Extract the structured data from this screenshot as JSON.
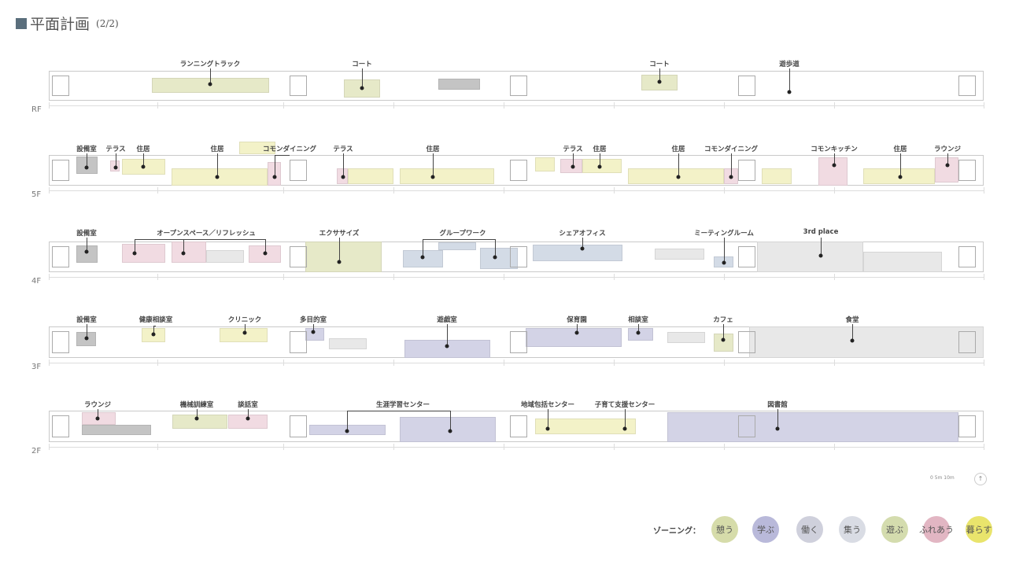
{
  "header": {
    "title": "平面計画",
    "page": "(2/2)"
  },
  "floors": [
    {
      "name": "RF",
      "labels": [
        "ランニングトラック",
        "コート",
        "コート",
        "遊歩道"
      ]
    },
    {
      "name": "5F",
      "labels": [
        "設備室",
        "テラス",
        "住居",
        "住居",
        "コモンダイニング",
        "テラス",
        "住居",
        "テラス",
        "住居",
        "住居",
        "コモンダイニング",
        "コモンキッチン",
        "住居",
        "ラウンジ"
      ]
    },
    {
      "name": "4F",
      "labels": [
        "設備室",
        "オープンスペース／リフレッシュ",
        "エクササイズ",
        "グループワーク",
        "シェアオフィス",
        "ミーティングルーム",
        "3rd place"
      ]
    },
    {
      "name": "3F",
      "labels": [
        "設備室",
        "健康相談室",
        "クリニック",
        "多目的室",
        "遊戯室",
        "保育園",
        "相談室",
        "カフェ",
        "食堂"
      ]
    },
    {
      "name": "2F",
      "labels": [
        "ラウンジ",
        "機械訓練室",
        "談話室",
        "生涯学習センター",
        "地域包括センター",
        "子育て支援センター",
        "図書館"
      ]
    }
  ],
  "scale_bar": "0 5m 10m",
  "north_arrow": "north-arrow-icon",
  "legend": {
    "title": "ゾーニング：",
    "items": [
      {
        "label": "憩う",
        "color": "#d6dcaa"
      },
      {
        "label": "学ぶ",
        "color": "#b9b9da"
      },
      {
        "label": "働く",
        "color": "#cfd0dc"
      },
      {
        "label": "集う",
        "color": "#d9dce4"
      },
      {
        "label": "遊ぶ",
        "color": "#d4dcae"
      },
      {
        "label": "ふれあう",
        "color": "#e2b6c3"
      },
      {
        "label": "暮らす",
        "color": "#e9e46c"
      }
    ]
  },
  "colors": {
    "title_square": "#5a6e7c",
    "play_fill": "#e6e9c8",
    "living_fill": "#f3f2c8",
    "contact_fill": "#f1dbe2",
    "learn_fill": "#d3d3e6",
    "work_fill": "#d3dbe6",
    "gather_fill": "#e8e8e8",
    "equipment_fill": "#c4c4c4"
  }
}
